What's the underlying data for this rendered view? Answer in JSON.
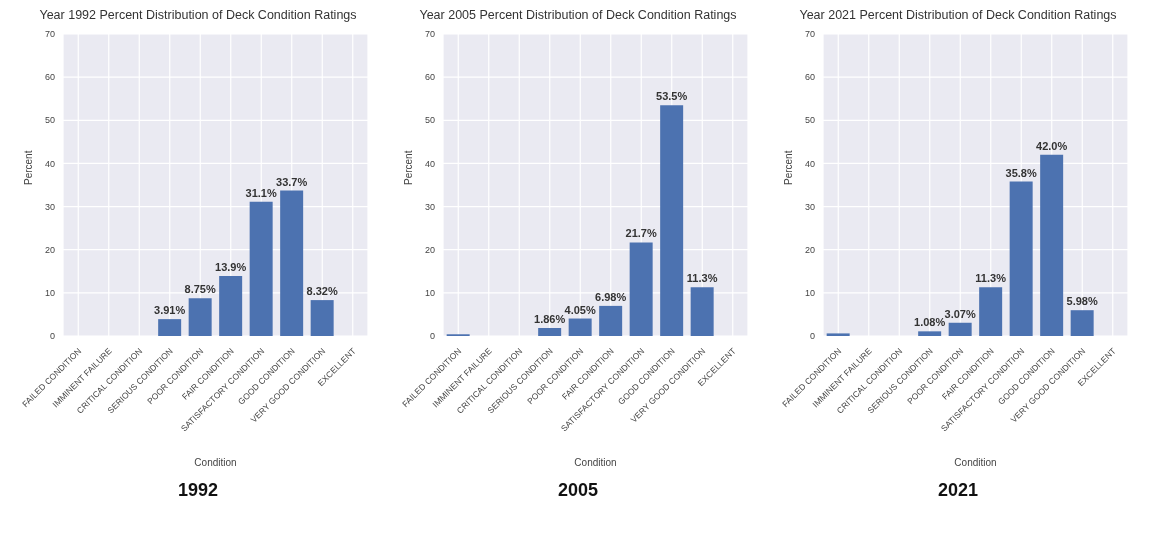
{
  "chart_data": [
    {
      "type": "bar",
      "title": "Year 1992 Percent Distribution of Deck Condition Ratings",
      "xlabel": "Condition",
      "ylabel": "Percent",
      "categories": [
        "FAILED CONDITION",
        "IMMINENT FAILURE",
        "CRITICAL CONDITION",
        "SERIOUS CONDITION",
        "POOR CONDITION",
        "FAIR CONDITION",
        "SATISFACTORY CONDITION",
        "GOOD CONDITION",
        "VERY GOOD CONDITION",
        "EXCELLENT"
      ],
      "values": [
        null,
        null,
        null,
        3.91,
        8.75,
        13.9,
        31.1,
        33.7,
        8.32,
        null
      ],
      "value_labels": [
        null,
        null,
        null,
        "3.91%",
        "8.75%",
        "13.9%",
        "31.1%",
        "33.7%",
        "8.32%",
        null
      ],
      "color": "#4c72b0",
      "ylim": [
        0,
        70
      ],
      "yticks": [
        0,
        10,
        20,
        30,
        40,
        50,
        60,
        70
      ],
      "grid": true,
      "annotations": [
        "1992"
      ]
    },
    {
      "type": "bar",
      "title": "Year 2005 Percent Distribution of Deck Condition Ratings",
      "xlabel": "Condition",
      "ylabel": "Percent",
      "categories": [
        "FAILED CONDITION",
        "IMMINENT FAILURE",
        "CRITICAL CONDITION",
        "SERIOUS CONDITION",
        "POOR CONDITION",
        "FAIR CONDITION",
        "SATISFACTORY CONDITION",
        "GOOD CONDITION",
        "VERY GOOD CONDITION",
        "EXCELLENT"
      ],
      "values": [
        0.4,
        null,
        null,
        1.86,
        4.05,
        6.98,
        21.7,
        53.5,
        11.3,
        null
      ],
      "value_labels": [
        null,
        null,
        null,
        "1.86%",
        "4.05%",
        "6.98%",
        "21.7%",
        "53.5%",
        "11.3%",
        null
      ],
      "color": "#4c72b0",
      "ylim": [
        0,
        70
      ],
      "yticks": [
        0,
        10,
        20,
        30,
        40,
        50,
        60,
        70
      ],
      "grid": true,
      "annotations": [
        "2005"
      ]
    },
    {
      "type": "bar",
      "title": "Year 2021 Percent Distribution of Deck Condition Ratings",
      "xlabel": "Condition",
      "ylabel": "Percent",
      "categories": [
        "FAILED CONDITION",
        "IMMINENT FAILURE",
        "CRITICAL CONDITION",
        "SERIOUS CONDITION",
        "POOR CONDITION",
        "FAIR CONDITION",
        "SATISFACTORY CONDITION",
        "GOOD CONDITION",
        "VERY GOOD CONDITION",
        "EXCELLENT"
      ],
      "values": [
        0.6,
        null,
        null,
        1.08,
        3.07,
        11.3,
        35.8,
        42.0,
        5.98,
        null
      ],
      "value_labels": [
        null,
        null,
        null,
        "1.08%",
        "3.07%",
        "11.3%",
        "35.8%",
        "42.0%",
        "5.98%",
        null
      ],
      "color": "#4c72b0",
      "ylim": [
        0,
        70
      ],
      "yticks": [
        0,
        10,
        20,
        30,
        40,
        50,
        60,
        70
      ],
      "grid": true,
      "annotations": [
        "2021"
      ]
    }
  ]
}
